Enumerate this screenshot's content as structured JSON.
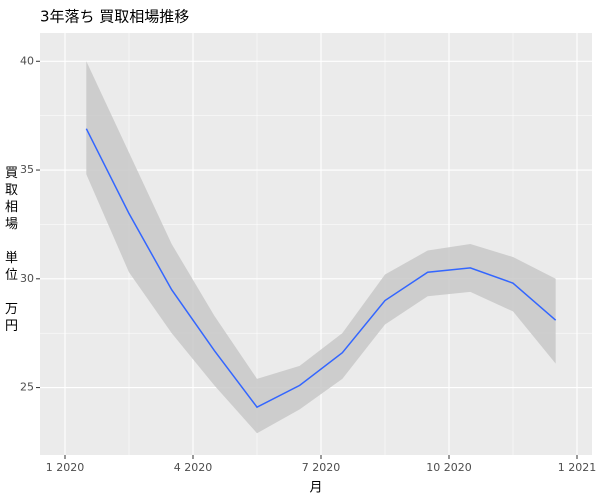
{
  "chart_data": {
    "type": "line",
    "title": "3年落ち 買取相場推移",
    "x_label": "月",
    "y_label": "買取相場\n\n単位\n\n万円",
    "x": [
      "2020-01",
      "2020-02",
      "2020-03",
      "2020-04",
      "2020-05",
      "2020-06",
      "2020-07",
      "2020-08",
      "2020-09",
      "2020-10",
      "2020-11",
      "2020-12"
    ],
    "series": [
      {
        "name": "smooth",
        "color": "#3366FF",
        "values": [
          36.9,
          33.0,
          29.5,
          26.7,
          24.1,
          25.1,
          26.6,
          29.0,
          30.3,
          30.5,
          29.8,
          28.1
        ],
        "upper": [
          40.0,
          35.8,
          31.6,
          28.3,
          25.4,
          26.0,
          27.5,
          30.2,
          31.3,
          31.6,
          31.0,
          30.0
        ],
        "lower": [
          34.8,
          30.3,
          27.5,
          25.1,
          22.9,
          24.0,
          25.4,
          27.9,
          29.2,
          29.4,
          28.5,
          26.1
        ],
        "band_color": "#C8C8C8"
      }
    ],
    "ylim": [
      21.9,
      41.3
    ],
    "yticks": [
      25,
      30,
      35,
      40
    ],
    "xticks": [
      {
        "value": "2020-01",
        "label": "1 2020"
      },
      {
        "value": "2020-04",
        "label": "4 2020"
      },
      {
        "value": "2020-07",
        "label": "7 2020"
      },
      {
        "value": "2020-10",
        "label": "10 2020"
      },
      {
        "value": "2021-01",
        "label": "1 2021"
      }
    ],
    "grid": true
  }
}
